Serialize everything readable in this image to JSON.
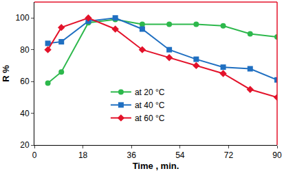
{
  "chart_data": {
    "type": "line",
    "x_label": "Time , min.",
    "y_label": "R %",
    "xlim": [
      0,
      90
    ],
    "xticks": [
      0,
      18,
      36,
      54,
      72,
      90
    ],
    "ylim": [
      20,
      110
    ],
    "yticks": [
      20,
      40,
      60,
      80,
      100
    ],
    "grid": false,
    "legend": "bottom",
    "x": [
      5,
      10,
      20,
      30,
      40,
      50,
      60,
      70,
      80,
      90
    ],
    "series": [
      {
        "name": "at 20 °C",
        "color": "#2db84c",
        "marker": "circle",
        "values": [
          59,
          66,
          97,
          99,
          96,
          96,
          96,
          95,
          90,
          88
        ]
      },
      {
        "name": "at 40 °C",
        "color": "#1f6fc1",
        "marker": "square",
        "values": [
          84,
          85,
          98,
          100,
          93,
          80,
          74,
          69,
          68,
          61
        ]
      },
      {
        "name": "at 60 °C",
        "color": "#e3122a",
        "marker": "diamond",
        "values": [
          80,
          94,
          100,
          93,
          80,
          75,
          70,
          65,
          55,
          50
        ]
      }
    ]
  }
}
